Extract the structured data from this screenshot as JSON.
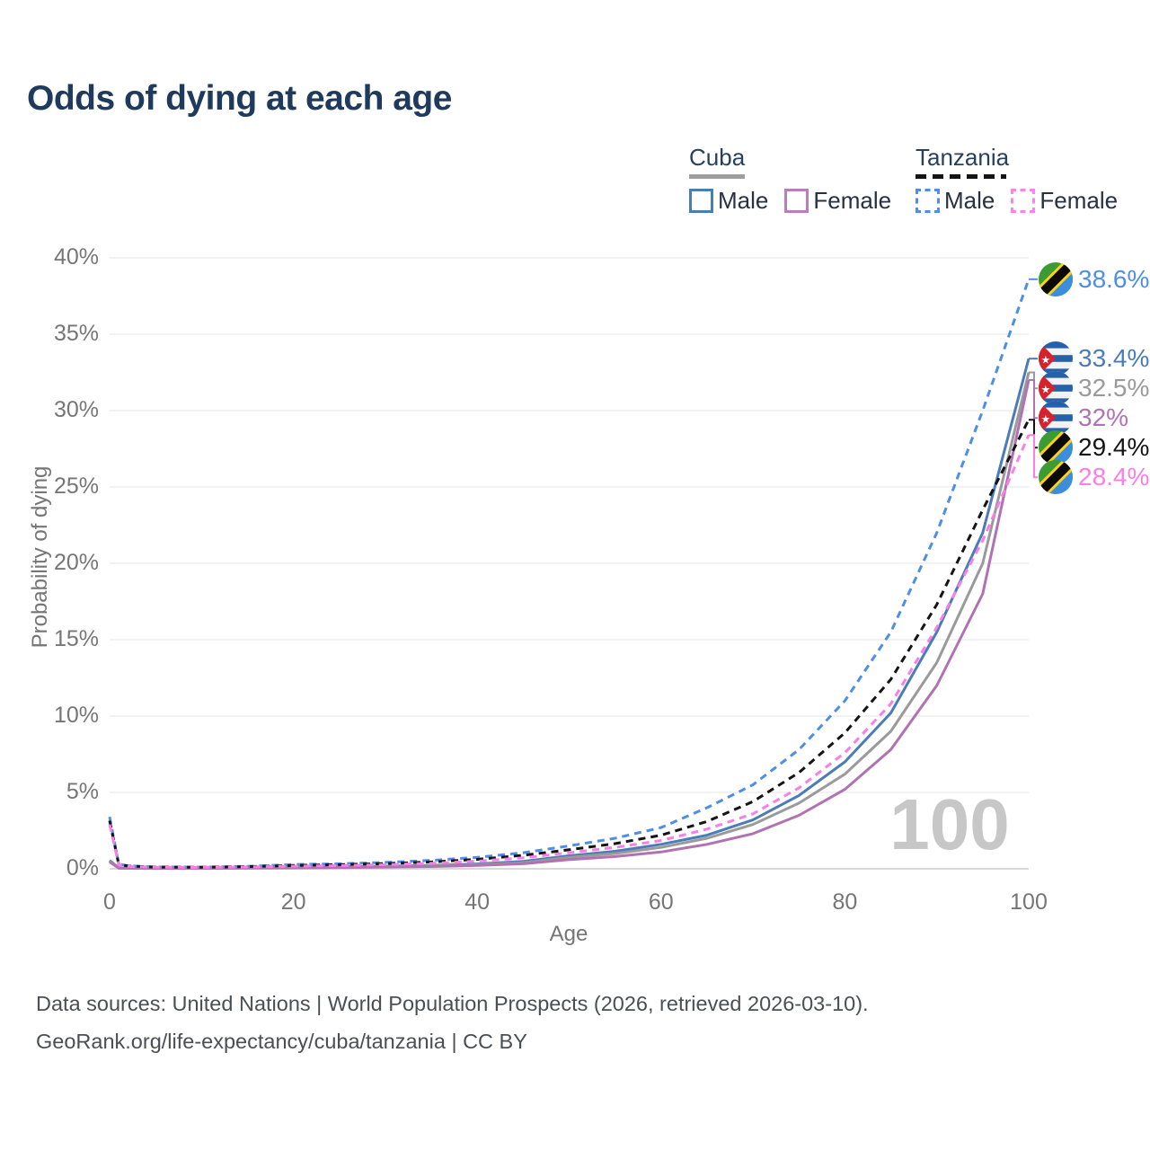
{
  "title": "Odds of dying at each age",
  "legend": {
    "groups": [
      {
        "name": "Cuba",
        "style": "solid",
        "underline_color": "#9e9e9e",
        "items": [
          {
            "label": "Male",
            "color": "#4a7cb8"
          },
          {
            "label": "Female",
            "color": "#bd7cbd"
          }
        ]
      },
      {
        "name": "Tanzania",
        "style": "dashed",
        "underline_color": "#141414",
        "items": [
          {
            "label": "Male",
            "color": "#4d8fe8"
          },
          {
            "label": "Female",
            "color": "#fb84ea"
          }
        ]
      }
    ]
  },
  "watermark": "100",
  "footer": {
    "line1": "Data sources: United Nations | World Population Prospects (2026, retrieved 2026-03-10).",
    "line2": "GeoRank.org/life-expectancy/cuba/tanzania | CC BY"
  },
  "chart_data": {
    "type": "line",
    "title": "Odds of dying at each age",
    "xlabel": "Age",
    "ylabel": "Probability of dying",
    "xlim": [
      0,
      100
    ],
    "ylim": [
      0,
      40
    ],
    "x_ticks": [
      0,
      20,
      40,
      60,
      80,
      100
    ],
    "y_ticks": [
      "0%",
      "5%",
      "10%",
      "15%",
      "20%",
      "25%",
      "30%",
      "35%",
      "40%"
    ],
    "grid": "horizontal",
    "legend_position": "top-right",
    "x": [
      0,
      1,
      2,
      5,
      10,
      15,
      20,
      25,
      30,
      35,
      40,
      45,
      50,
      55,
      60,
      65,
      70,
      75,
      80,
      85,
      90,
      95,
      100
    ],
    "series": [
      {
        "name": "Tanzania Male",
        "flag": "tanzania",
        "dash": true,
        "color": "#4d8fe8",
        "end_label": "38.6%",
        "values": [
          3.4,
          0.3,
          0.2,
          0.12,
          0.11,
          0.16,
          0.28,
          0.33,
          0.42,
          0.55,
          0.75,
          1.05,
          1.5,
          2.0,
          2.7,
          4.0,
          5.5,
          7.8,
          11.0,
          15.5,
          22.0,
          30.0,
          38.6
        ]
      },
      {
        "name": "Cuba Male",
        "flag": "cuba",
        "dash": false,
        "color": "#4a7cb8",
        "end_label": "33.4%",
        "values": [
          0.55,
          0.05,
          0.04,
          0.03,
          0.03,
          0.07,
          0.12,
          0.14,
          0.17,
          0.22,
          0.32,
          0.48,
          0.85,
          1.15,
          1.6,
          2.2,
          3.2,
          4.8,
          7.0,
          10.2,
          15.5,
          22.0,
          33.4
        ]
      },
      {
        "name": "Cuba Both sexes",
        "flag": "cuba",
        "dash": false,
        "color": "#9a9a9a",
        "end_label": "32.5%",
        "values": [
          0.5,
          0.045,
          0.035,
          0.027,
          0.027,
          0.055,
          0.09,
          0.11,
          0.14,
          0.18,
          0.27,
          0.4,
          0.75,
          1.0,
          1.4,
          2.0,
          2.9,
          4.3,
          6.2,
          9.0,
          13.5,
          20.0,
          32.5
        ]
      },
      {
        "name": "Cuba Female",
        "flag": "cuba",
        "dash": false,
        "color": "#b172b1",
        "end_label": "32%",
        "values": [
          0.45,
          0.04,
          0.03,
          0.025,
          0.025,
          0.04,
          0.06,
          0.08,
          0.11,
          0.15,
          0.22,
          0.33,
          0.6,
          0.8,
          1.1,
          1.6,
          2.3,
          3.5,
          5.2,
          7.8,
          12.0,
          18.0,
          32.0
        ]
      },
      {
        "name": "Tanzania Both sexes",
        "flag": "tanzania",
        "dash": true,
        "color": "#141414",
        "end_label": "29.4%",
        "values": [
          3.15,
          0.27,
          0.18,
          0.11,
          0.1,
          0.14,
          0.22,
          0.27,
          0.34,
          0.45,
          0.62,
          0.88,
          1.25,
          1.65,
          2.2,
          3.1,
          4.4,
          6.3,
          8.9,
          12.4,
          17.3,
          23.5,
          29.4
        ]
      },
      {
        "name": "Tanzania Female",
        "flag": "tanzania",
        "dash": true,
        "color": "#fb7ee8",
        "end_label": "28.4%",
        "values": [
          2.9,
          0.25,
          0.16,
          0.1,
          0.09,
          0.12,
          0.17,
          0.21,
          0.27,
          0.36,
          0.5,
          0.72,
          1.05,
          1.4,
          1.85,
          2.6,
          3.6,
          5.3,
          7.6,
          10.8,
          15.8,
          21.5,
          28.4
        ]
      }
    ]
  }
}
